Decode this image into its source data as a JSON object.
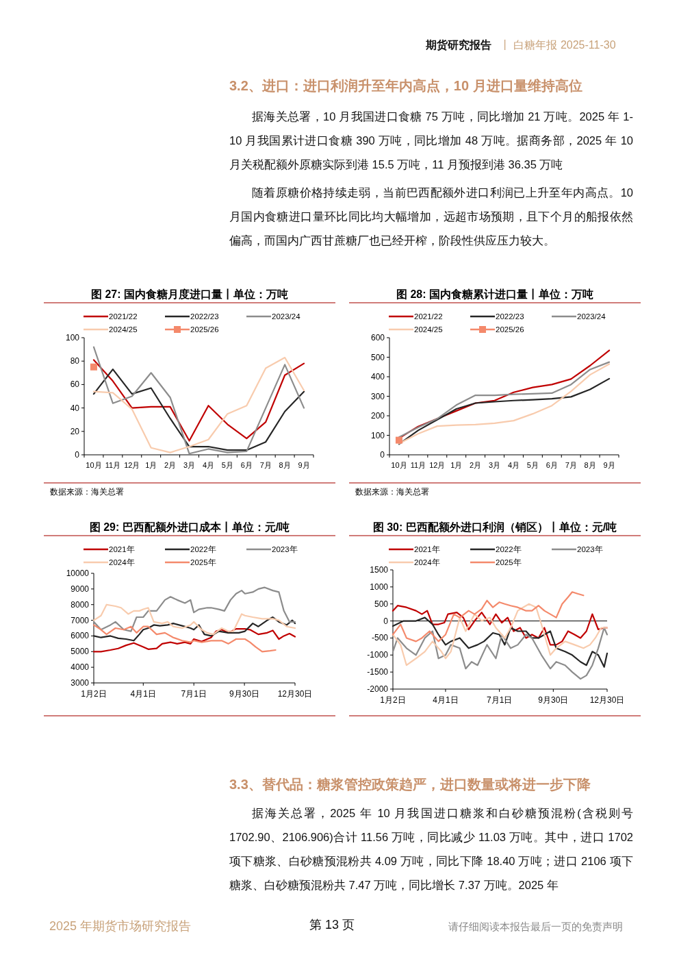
{
  "chart_data": [
    {
      "type": "other",
      "title": "3.2、进口：进口利润升至年内高点，10 月进口量维持高位",
      "annotations": [
        "期货研究报告",
        "丨 白糖年报 2025-11-30",
        "据海关总署，10 月我国进口食糖 75 万吨，同比增加 21 万吨。2025 年 1-10 月我国累计进口食糖 390 万吨，同比增加 48 万吨。据商务部，2025 年 10 月关税配额外原糖实际到港 15.5 万吨，11 月预报到港 36.35 万吨",
        "随着原糖价格持续走弱，当前巴西配额外进口利润已上升至年内高点。10 月国内食糖进口量环比同比均大幅增加，远超市场预期，且下个月的船报依然偏高，而国内广西甘蔗糖厂也已经开榨，阶段性供应压力较大。"
      ]
    },
    {
      "type": "line",
      "title": "图 27: 国内食糖月度进口量丨单位：万吨",
      "annotations": [
        "数据来源：海关总署"
      ],
      "legend": "top",
      "categories": [
        "10月",
        "11月",
        "12月",
        "1月",
        "2月",
        "3月",
        "4月",
        "5月",
        "6月",
        "7月",
        "8月",
        "9月"
      ],
      "ylim": [
        0,
        100
      ],
      "yticks": [
        0,
        20,
        40,
        60,
        80,
        100
      ],
      "series": [
        {
          "name": "2021/22",
          "color": "#c00000",
          "values": [
            81,
            63,
            40,
            41,
            41,
            12,
            42,
            26,
            14,
            28,
            68,
            78
          ]
        },
        {
          "name": "2022/23",
          "color": "#262626",
          "values": [
            52,
            73,
            52,
            57,
            31,
            7,
            7,
            4,
            4,
            11,
            37,
            54
          ]
        },
        {
          "name": "2023/24",
          "color": "#8c8c8c",
          "values": [
            92,
            44,
            50,
            70,
            49,
            1,
            5,
            2,
            3,
            40,
            77,
            40
          ]
        },
        {
          "name": "2024/25",
          "color": "#f8cbad",
          "values": [
            54,
            53,
            39,
            6,
            2,
            7,
            13,
            35,
            42,
            74,
            83,
            55
          ]
        },
        {
          "name": "2025/26",
          "color": "#f4896b",
          "marker": "square",
          "values": [
            75,
            null,
            null,
            null,
            null,
            null,
            null,
            null,
            null,
            null,
            null,
            null
          ]
        }
      ]
    },
    {
      "type": "line",
      "title": "图 28: 国内食糖累计进口量丨单位：万吨",
      "annotations": [
        "数据来源：海关总署"
      ],
      "legend": "top",
      "categories": [
        "10月",
        "11月",
        "12月",
        "1月",
        "2月",
        "3月",
        "4月",
        "5月",
        "6月",
        "7月",
        "8月",
        "9月"
      ],
      "ylim": [
        0,
        600
      ],
      "yticks": [
        0,
        100,
        200,
        300,
        400,
        500,
        600
      ],
      "series": [
        {
          "name": "2021/22",
          "color": "#c00000",
          "values": [
            85,
            145,
            185,
            225,
            265,
            278,
            320,
            345,
            360,
            388,
            457,
            535
          ]
        },
        {
          "name": "2022/23",
          "color": "#262626",
          "values": [
            55,
            125,
            180,
            235,
            265,
            272,
            278,
            282,
            287,
            297,
            335,
            390
          ]
        },
        {
          "name": "2023/24",
          "color": "#8c8c8c",
          "values": [
            90,
            140,
            185,
            255,
            305,
            305,
            310,
            313,
            316,
            360,
            437,
            475
          ]
        },
        {
          "name": "2024/25",
          "color": "#f8cbad",
          "values": [
            58,
            108,
            147,
            152,
            155,
            162,
            175,
            210,
            252,
            325,
            410,
            465
          ]
        },
        {
          "name": "2025/26",
          "color": "#f4896b",
          "marker": "square",
          "values": [
            75,
            null,
            null,
            null,
            null,
            null,
            null,
            null,
            null,
            null,
            null,
            null
          ]
        }
      ]
    },
    {
      "type": "line",
      "title": "图 29: 巴西配额外进口成本丨单位：元/吨",
      "legend": "top",
      "xlim": [
        "--01-02",
        "--12-30"
      ],
      "xticks": [
        {
          "value": "--01-02",
          "label": "1月2日"
        },
        {
          "value": "--04-01",
          "label": "4月1日"
        },
        {
          "value": "--07-01",
          "label": "7月1日"
        },
        {
          "value": "--09-30",
          "label": "9月30日"
        },
        {
          "value": "--12-30",
          "label": "12月30日"
        }
      ],
      "ylim": [
        3000,
        10000
      ],
      "yticks": [
        3000,
        4000,
        5000,
        6000,
        7000,
        8000,
        9000,
        10000
      ],
      "series": [
        {
          "name": "2021年",
          "color": "#c00000",
          "x": [
            "--01-02",
            "--01-15",
            "--02-01",
            "--02-15",
            "--03-01",
            "--03-15",
            "--04-01",
            "--04-10",
            "--04-25",
            "--05-05",
            "--05-20",
            "--06-01",
            "--06-15",
            "--06-25",
            "--07-01",
            "--07-15",
            "--08-01",
            "--08-10",
            "--08-20",
            "--09-01",
            "--09-15",
            "--10-01",
            "--10-10",
            "--10-25",
            "--11-10",
            "--11-20",
            "--12-01",
            "--12-10",
            "--12-20",
            "--12-30"
          ],
          "values": [
            5000,
            5000,
            5100,
            5200,
            5400,
            5550,
            5300,
            5150,
            5200,
            5500,
            5600,
            5500,
            5600,
            5500,
            5800,
            5650,
            5900,
            6300,
            6400,
            6200,
            6450,
            6450,
            6400,
            6100,
            6200,
            6350,
            5800,
            6000,
            6150,
            5950
          ]
        },
        {
          "name": "2022年",
          "color": "#262626",
          "x": [
            "--01-02",
            "--01-15",
            "--02-01",
            "--02-15",
            "--03-01",
            "--03-15",
            "--03-25",
            "--04-01",
            "--04-10",
            "--04-20",
            "--05-01",
            "--05-15",
            "--05-25",
            "--06-10",
            "--06-25",
            "--07-01",
            "--07-10",
            "--07-20",
            "--08-01",
            "--08-15",
            "--09-01",
            "--09-20",
            "--10-01",
            "--10-15",
            "--10-25",
            "--11-10",
            "--11-20",
            "--12-01",
            "--12-15",
            "--12-25",
            "--12-30"
          ],
          "values": [
            6000,
            5900,
            6000,
            5850,
            5800,
            5700,
            6100,
            6400,
            6500,
            6700,
            6650,
            6700,
            6800,
            6650,
            6500,
            6400,
            6700,
            6100,
            6000,
            6300,
            6200,
            6200,
            6300,
            6800,
            6600,
            7000,
            7200,
            6900,
            6700,
            7000,
            6800
          ]
        },
        {
          "name": "2023年",
          "color": "#8c8c8c",
          "x": [
            "--01-02",
            "--01-15",
            "--02-01",
            "--02-10",
            "--02-25",
            "--03-10",
            "--03-20",
            "--04-01",
            "--04-10",
            "--04-25",
            "--05-10",
            "--05-20",
            "--06-01",
            "--06-15",
            "--06-25",
            "--07-01",
            "--07-10",
            "--07-25",
            "--08-01",
            "--08-15",
            "--08-25",
            "--09-05",
            "--09-15",
            "--09-25",
            "--10-01",
            "--10-15",
            "--10-25",
            "--11-05",
            "--11-20",
            "--12-01",
            "--12-10",
            "--12-20",
            "--12-30"
          ],
          "values": [
            6900,
            6400,
            6700,
            6900,
            6400,
            6300,
            7200,
            7200,
            7600,
            7600,
            8300,
            8500,
            8300,
            8100,
            8300,
            7500,
            7700,
            7800,
            7800,
            7700,
            7600,
            8300,
            8700,
            8900,
            8700,
            8800,
            9000,
            9100,
            8900,
            8800,
            7600,
            6900,
            6900
          ]
        },
        {
          "name": "2024年",
          "color": "#f8cbad",
          "x": [
            "--01-02",
            "--01-15",
            "--01-25",
            "--02-10",
            "--02-20",
            "--03-05",
            "--03-15",
            "--03-25",
            "--04-01",
            "--04-10",
            "--04-20",
            "--05-05",
            "--05-15",
            "--05-25",
            "--06-10",
            "--06-25",
            "--07-01",
            "--07-15",
            "--07-25",
            "--08-05",
            "--08-20",
            "--09-01",
            "--09-10",
            "--09-25",
            "--10-01",
            "--10-15",
            "--11-01",
            "--11-20",
            "--12-01",
            "--12-15",
            "--12-30"
          ],
          "values": [
            7000,
            7300,
            8000,
            7900,
            7800,
            7400,
            7600,
            7600,
            7700,
            7800,
            6900,
            6800,
            6900,
            6600,
            6500,
            6700,
            6900,
            6400,
            6200,
            6100,
            6500,
            6300,
            6300,
            7400,
            7300,
            7200,
            7100,
            7100,
            7000,
            6600,
            6500
          ]
        },
        {
          "name": "2025年",
          "color": "#f4896b",
          "x": [
            "--01-02",
            "--01-15",
            "--01-25",
            "--02-10",
            "--02-25",
            "--03-10",
            "--03-20",
            "--04-01",
            "--04-10",
            "--04-25",
            "--05-10",
            "--05-25",
            "--06-10",
            "--06-25",
            "--07-01",
            "--07-15",
            "--08-01",
            "--08-20",
            "--09-01",
            "--09-15",
            "--10-01",
            "--10-10",
            "--10-20",
            "--11-01",
            "--11-15",
            "--11-25"
          ],
          "values": [
            6700,
            6400,
            6100,
            6500,
            6400,
            6600,
            6200,
            6600,
            6600,
            6100,
            6200,
            5900,
            5700,
            5600,
            5700,
            5600,
            5700,
            5700,
            5500,
            5800,
            5800,
            5600,
            5300,
            5000,
            5050,
            5100
          ]
        }
      ]
    },
    {
      "type": "line",
      "title": "图 30: 巴西配额外进口利润（销区）丨单位：元/吨",
      "legend": "top",
      "ref_lines": [
        {
          "axis": "y",
          "value": 0,
          "color": "#000000"
        }
      ],
      "xlim": [
        "--01-02",
        "--12-30"
      ],
      "xticks": [
        {
          "value": "--01-02",
          "label": "1月2日"
        },
        {
          "value": "--04-01",
          "label": "4月1日"
        },
        {
          "value": "--07-01",
          "label": "7月1日"
        },
        {
          "value": "--09-30",
          "label": "9月30日"
        },
        {
          "value": "--12-30",
          "label": "12月30日"
        }
      ],
      "ylim": [
        -2000,
        1500
      ],
      "yticks": [
        -2000,
        -1500,
        -1000,
        -500,
        0,
        500,
        1000,
        1500
      ],
      "series": [
        {
          "name": "2021年",
          "color": "#c00000",
          "x": [
            "--01-02",
            "--01-10",
            "--01-25",
            "--02-10",
            "--02-20",
            "--03-01",
            "--03-10",
            "--03-20",
            "--03-30",
            "--04-05",
            "--04-20",
            "--05-01",
            "--05-10",
            "--05-20",
            "--06-01",
            "--06-15",
            "--06-25",
            "--07-05",
            "--07-15",
            "--07-25",
            "--08-05",
            "--08-15",
            "--08-25",
            "--09-05",
            "--09-15",
            "--09-25",
            "--10-05",
            "--10-15",
            "--10-25",
            "--11-05",
            "--11-15",
            "--11-25",
            "--12-05",
            "--12-15",
            "--12-25",
            "--12-30"
          ],
          "values": [
            300,
            450,
            400,
            300,
            200,
            300,
            -100,
            -100,
            -50,
            200,
            250,
            100,
            -250,
            0,
            250,
            -100,
            200,
            -50,
            100,
            -300,
            -200,
            -500,
            -400,
            -500,
            -200,
            -700,
            -700,
            -600,
            -300,
            -400,
            -500,
            -300,
            200,
            -250,
            -200,
            -200
          ]
        },
        {
          "name": "2022年",
          "color": "#262626",
          "x": [
            "--01-02",
            "--01-20",
            "--02-10",
            "--02-25",
            "--03-10",
            "--03-20",
            "--04-01",
            "--04-10",
            "--04-25",
            "--05-10",
            "--05-25",
            "--06-05",
            "--06-20",
            "--07-01",
            "--07-10",
            "--07-20",
            "--08-01",
            "--08-15",
            "--08-25",
            "--09-05",
            "--09-15",
            "--09-25",
            "--10-05",
            "--10-20",
            "--11-01",
            "--11-15",
            "--11-25",
            "--12-05",
            "--12-15",
            "--12-25",
            "--12-30"
          ],
          "values": [
            -150,
            0,
            0,
            100,
            -100,
            -400,
            -700,
            -600,
            -500,
            -800,
            -700,
            -600,
            -350,
            -400,
            -700,
            -200,
            -300,
            -300,
            -500,
            -500,
            -400,
            -300,
            -800,
            -900,
            -1000,
            -1200,
            -1300,
            -900,
            -1000,
            -1350,
            -950
          ]
        },
        {
          "name": "2023年",
          "color": "#8c8c8c",
          "x": [
            "--01-02",
            "--01-10",
            "--01-25",
            "--02-10",
            "--02-25",
            "--03-10",
            "--03-20",
            "--04-01",
            "--04-10",
            "--04-25",
            "--05-05",
            "--05-15",
            "--05-25",
            "--06-10",
            "--06-25",
            "--07-05",
            "--07-20",
            "--08-01",
            "--08-15",
            "--08-25",
            "--09-10",
            "--09-25",
            "--10-05",
            "--10-20",
            "--11-01",
            "--11-15",
            "--11-25",
            "--12-05",
            "--12-15",
            "--12-25",
            "--12-30"
          ],
          "values": [
            -900,
            -500,
            -800,
            -1000,
            -500,
            -300,
            -1100,
            -1000,
            -700,
            -800,
            -1400,
            -1200,
            -1300,
            -700,
            -1100,
            -400,
            -800,
            -700,
            -400,
            -500,
            -1000,
            -1400,
            -1200,
            -1300,
            -1500,
            -1700,
            -1600,
            -1300,
            -800,
            -200,
            -400
          ]
        },
        {
          "name": "2024年",
          "color": "#f8cbad",
          "x": [
            "--01-02",
            "--01-15",
            "--01-25",
            "--02-10",
            "--02-25",
            "--03-10",
            "--03-25",
            "--04-01",
            "--04-10",
            "--04-25",
            "--05-05",
            "--05-20",
            "--06-01",
            "--06-15",
            "--06-25",
            "--07-10",
            "--07-20",
            "--08-01",
            "--08-10",
            "--08-20",
            "--09-01",
            "--09-10",
            "--09-25",
            "--10-05",
            "--10-20",
            "--11-05",
            "--11-20",
            "--12-01",
            "--12-10",
            "--12-20",
            "--12-30"
          ],
          "values": [
            -400,
            -700,
            -1300,
            -1100,
            -900,
            -600,
            -900,
            -1100,
            -900,
            100,
            -300,
            200,
            0,
            100,
            -200,
            -500,
            -200,
            300,
            400,
            500,
            400,
            -100,
            -1000,
            -800,
            -600,
            -700,
            -800,
            -700,
            -500,
            -200,
            -200
          ]
        },
        {
          "name": "2025年",
          "color": "#f4896b",
          "x": [
            "--01-02",
            "--01-15",
            "--01-25",
            "--02-10",
            "--02-20",
            "--03-05",
            "--03-20",
            "--04-01",
            "--04-15",
            "--04-25",
            "--05-10",
            "--05-20",
            "--06-01",
            "--06-10",
            "--06-20",
            "--07-01",
            "--07-10",
            "--07-20",
            "--08-01",
            "--08-15",
            "--08-25",
            "--09-05",
            "--09-15",
            "--09-25",
            "--10-05",
            "--10-15",
            "--10-25",
            "--11-01",
            "--11-10",
            "--11-20"
          ],
          "values": [
            -400,
            -100,
            -500,
            -600,
            -500,
            -300,
            -600,
            -400,
            200,
            100,
            300,
            200,
            350,
            600,
            400,
            550,
            500,
            450,
            400,
            300,
            300,
            450,
            300,
            200,
            100,
            500,
            700,
            850,
            800,
            750
          ]
        }
      ]
    },
    {
      "type": "other",
      "title": "3.3、替代品：糖浆管控政策趋严，进口数量或将进一步下降",
      "annotations": [
        "据海关总署，2025 年 10 月我国进口糖浆和白砂糖预混粉(含税则号 1702.90、2106.906)合计 11.56 万吨，同比减少 11.03 万吨。其中，进口 1702 项下糖浆、白砂糖预混粉共 4.09 万吨，同比下降 18.40 万吨；进口 2106 项下糖浆、白砂糖预混粉共 7.47 万吨，同比增长 7.37 万吨。2025 年",
        "2025 年期货市场研究报告",
        "第 13 页",
        "请仔细阅读本报告最后一页的免责声明"
      ]
    }
  ]
}
